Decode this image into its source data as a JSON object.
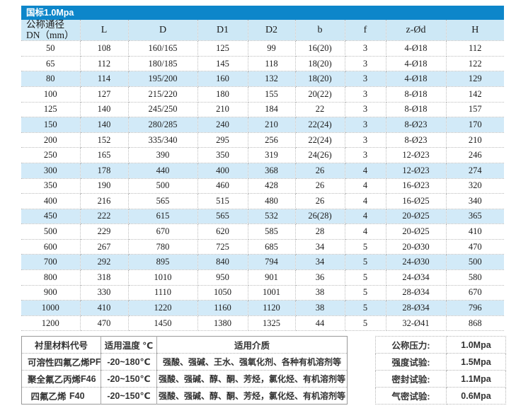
{
  "colors": {
    "accent_blue": "#0d86ca",
    "header_bg": "#cde8f6",
    "row_highlight": "#d2eaf8"
  },
  "title_bar": {
    "label": "国标1.0Mpa"
  },
  "spec_table": {
    "header": {
      "dn_line1": "公称通径",
      "dn_line2": "DN（mm）",
      "columns": [
        "L",
        "D",
        "D1",
        "D2",
        "b",
        "f",
        "z-Ød",
        "H"
      ]
    },
    "rows": [
      [
        "50",
        "108",
        "160/165",
        "125",
        "99",
        "16(20)",
        "3",
        "4-Ø18",
        "112"
      ],
      [
        "65",
        "112",
        "180/185",
        "145",
        "118",
        "18(20)",
        "3",
        "4-Ø18",
        "122"
      ],
      [
        "80",
        "114",
        "195/200",
        "160",
        "132",
        "18(20)",
        "3",
        "4-Ø18",
        "129"
      ],
      [
        "100",
        "127",
        "215/220",
        "180",
        "155",
        "20(22)",
        "3",
        "8-Ø18",
        "142"
      ],
      [
        "125",
        "140",
        "245/250",
        "210",
        "184",
        "22",
        "3",
        "8-Ø18",
        "157"
      ],
      [
        "150",
        "140",
        "280/285",
        "240",
        "210",
        "22(24)",
        "3",
        "8-Ø23",
        "170"
      ],
      [
        "200",
        "152",
        "335/340",
        "295",
        "256",
        "22(24)",
        "3",
        "8-Ø23",
        "210"
      ],
      [
        "250",
        "165",
        "390",
        "350",
        "319",
        "24(26)",
        "3",
        "12-Ø23",
        "246"
      ],
      [
        "300",
        "178",
        "440",
        "400",
        "368",
        "26",
        "4",
        "12-Ø23",
        "274"
      ],
      [
        "350",
        "190",
        "500",
        "460",
        "428",
        "26",
        "4",
        "16-Ø23",
        "320"
      ],
      [
        "400",
        "216",
        "565",
        "515",
        "480",
        "26",
        "4",
        "16-Ø25",
        "340"
      ],
      [
        "450",
        "222",
        "615",
        "565",
        "532",
        "26(28)",
        "4",
        "20-Ø25",
        "365"
      ],
      [
        "500",
        "229",
        "670",
        "620",
        "585",
        "28",
        "4",
        "20-Ø25",
        "410"
      ],
      [
        "600",
        "267",
        "780",
        "725",
        "685",
        "34",
        "5",
        "20-Ø30",
        "470"
      ],
      [
        "700",
        "292",
        "895",
        "840",
        "794",
        "34",
        "5",
        "24-Ø30",
        "500"
      ],
      [
        "800",
        "318",
        "1010",
        "950",
        "901",
        "36",
        "5",
        "24-Ø34",
        "580"
      ],
      [
        "900",
        "330",
        "1110",
        "1050",
        "1001",
        "38",
        "5",
        "28-Ø34",
        "670"
      ],
      [
        "1000",
        "410",
        "1220",
        "1160",
        "1120",
        "38",
        "5",
        "28-Ø34",
        "796"
      ],
      [
        "1200",
        "470",
        "1450",
        "1380",
        "1325",
        "44",
        "5",
        "32-Ø41",
        "868"
      ]
    ]
  },
  "material_table": {
    "headers": [
      "衬里材料代号",
      "适用温度 ℃",
      "适用介质"
    ],
    "rows": [
      {
        "material": "可溶性四氟乙烯",
        "code": "PFA",
        "temp": "-20~180℃",
        "media": "强酸、强碱、王水、强氧化剂、各种有机溶剂等"
      },
      {
        "material": "聚全氟乙丙烯",
        "code": "F46",
        "temp": "-20~150℃",
        "media": "强酸、强碱、醇、酮、芳烃，氯化烃、有机溶剂等"
      },
      {
        "material": "四氟乙烯",
        "code": "F40",
        "temp": "-20~150℃",
        "media": "强酸、强碱、醇、酮、芳烃，氯化烃、有机溶剂等"
      }
    ]
  },
  "pressure_table": {
    "rows": [
      {
        "label": "公称压力:",
        "value": "1.0Mpa"
      },
      {
        "label": "强度试验:",
        "value": "1.5Mpa"
      },
      {
        "label": "密封试验:",
        "value": "1.1Mpa"
      },
      {
        "label": "气密试验:",
        "value": "0.6Mpa"
      }
    ]
  }
}
